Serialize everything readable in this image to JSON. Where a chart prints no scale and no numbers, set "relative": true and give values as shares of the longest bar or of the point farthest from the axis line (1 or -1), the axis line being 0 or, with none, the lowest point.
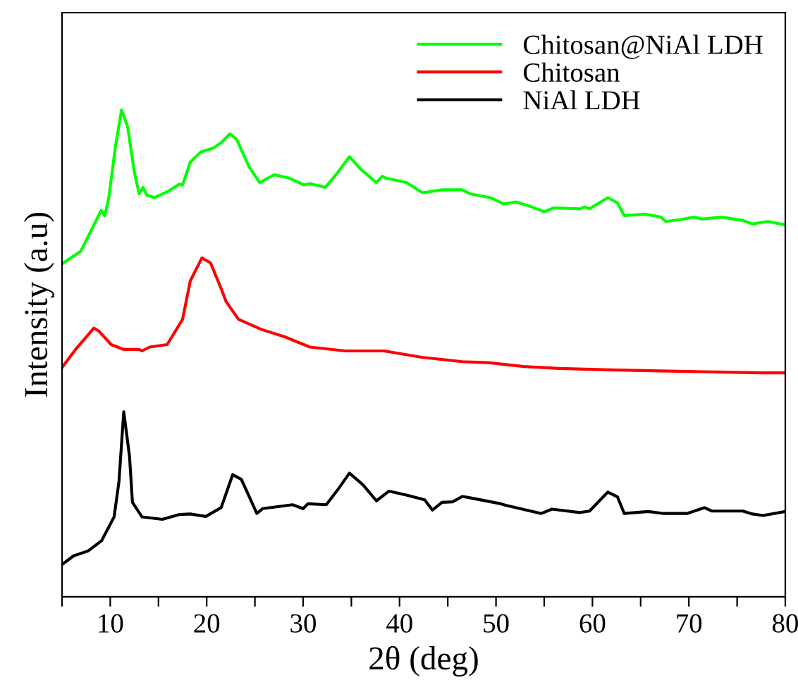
{
  "chart_data": {
    "type": "line",
    "xlabel": "2θ (deg)",
    "ylabel": "Intensity (a.u)",
    "relative": true,
    "legend": "top right",
    "grid": false,
    "xlim": [
      5,
      80
    ],
    "xticks": [
      {
        "value": 5,
        "label": null
      },
      10,
      {
        "value": 15,
        "label": null
      },
      20,
      {
        "value": 25,
        "label": null
      },
      30,
      {
        "value": 35,
        "label": null
      },
      40,
      {
        "value": 45,
        "label": null
      },
      50,
      {
        "value": 55,
        "label": null
      },
      60,
      {
        "value": 65,
        "label": null
      },
      70,
      {
        "value": 75,
        "label": null
      },
      80
    ],
    "series": [
      {
        "name": "Chitosan@NiAl LDH",
        "color": "#00ff00",
        "x": [
          5,
          6.95,
          9.06,
          9.43,
          9.85,
          10.54,
          11.17,
          11.8,
          12.5,
          13.0,
          13.4,
          13.8,
          14.6,
          15.9,
          17.2,
          17.5,
          18.3,
          19.4,
          20.7,
          21.5,
          22.4,
          23.1,
          24.4,
          25.5,
          27.0,
          28.6,
          30.1,
          30.7,
          32.3,
          33.6,
          34.8,
          36.0,
          37.6,
          38.2,
          38.6,
          40.7,
          42.4,
          44.4,
          46.5,
          47.3,
          49.4,
          50.8,
          52.1,
          53.7,
          55.0,
          56.0,
          58.7,
          59.2,
          59.7,
          61.6,
          62.6,
          63.3,
          65.5,
          67.1,
          67.6,
          69.2,
          70.5,
          71.4,
          73.4,
          75.6,
          76.6,
          78.2,
          80.0
        ],
        "values": [
          0.684,
          0.71,
          0.794,
          0.783,
          0.82,
          0.925,
          1.0,
          0.966,
          0.872,
          0.828,
          0.841,
          0.825,
          0.82,
          0.832,
          0.848,
          0.846,
          0.893,
          0.914,
          0.922,
          0.933,
          0.951,
          0.94,
          0.883,
          0.851,
          0.867,
          0.86,
          0.846,
          0.849,
          0.841,
          0.872,
          0.904,
          0.878,
          0.851,
          0.864,
          0.86,
          0.851,
          0.83,
          0.836,
          0.836,
          0.828,
          0.82,
          0.807,
          0.811,
          0.801,
          0.791,
          0.799,
          0.797,
          0.801,
          0.797,
          0.82,
          0.809,
          0.783,
          0.786,
          0.78,
          0.771,
          0.775,
          0.78,
          0.776,
          0.78,
          0.773,
          0.766,
          0.771,
          0.764
        ]
      },
      {
        "name": "Chitosan",
        "color": "#ff0000",
        "x": [
          5,
          6.4,
          8.3,
          8.8,
          10.1,
          11.4,
          13.0,
          13.3,
          14.1,
          15.9,
          17.5,
          18.3,
          19.5,
          20.4,
          21.5,
          22.0,
          23.3,
          25.7,
          28.1,
          30.7,
          34.4,
          38.4,
          42.3,
          46.5,
          49.2,
          52.9,
          56.6,
          61.8,
          67.1,
          72.4,
          77.7,
          80
        ],
        "values": [
          0.471,
          0.508,
          0.552,
          0.546,
          0.518,
          0.508,
          0.508,
          0.505,
          0.513,
          0.518,
          0.57,
          0.649,
          0.696,
          0.686,
          0.633,
          0.607,
          0.57,
          0.549,
          0.534,
          0.513,
          0.505,
          0.505,
          0.492,
          0.483,
          0.481,
          0.473,
          0.469,
          0.466,
          0.464,
          0.462,
          0.46,
          0.46
        ]
      },
      {
        "name": "NiAl LDH",
        "color": "#000000",
        "x": [
          5,
          6.2,
          7.7,
          9.1,
          10.4,
          10.9,
          11.4,
          12.0,
          12.3,
          13.3,
          15.4,
          17.2,
          18.3,
          19.9,
          21.5,
          22.7,
          23.6,
          25.2,
          25.8,
          28.9,
          30.0,
          30.5,
          32.4,
          33.6,
          34.8,
          36.2,
          37.6,
          38.9,
          40.7,
          42.6,
          43.4,
          44.4,
          45.5,
          46.5,
          47.1,
          50.5,
          51.0,
          54.7,
          55.8,
          58.7,
          59.7,
          61.6,
          62.6,
          63.3,
          65.8,
          67.4,
          69.8,
          71.6,
          72.4,
          75.6,
          76.6,
          77.7,
          80
        ],
        "values": [
          0.066,
          0.084,
          0.094,
          0.115,
          0.164,
          0.236,
          0.38,
          0.288,
          0.194,
          0.164,
          0.159,
          0.169,
          0.17,
          0.165,
          0.183,
          0.251,
          0.241,
          0.171,
          0.181,
          0.189,
          0.181,
          0.191,
          0.189,
          0.22,
          0.254,
          0.23,
          0.197,
          0.217,
          0.209,
          0.199,
          0.178,
          0.194,
          0.195,
          0.206,
          0.204,
          0.191,
          0.188,
          0.171,
          0.18,
          0.173,
          0.176,
          0.215,
          0.205,
          0.171,
          0.175,
          0.171,
          0.171,
          0.183,
          0.176,
          0.176,
          0.17,
          0.167,
          0.175
        ]
      }
    ]
  }
}
